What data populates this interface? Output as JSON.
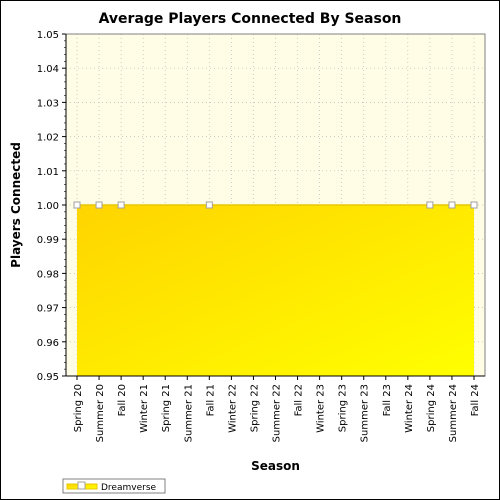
{
  "chart_data": {
    "type": "area",
    "title": "Average Players Connected By Season",
    "xlabel": "Season",
    "ylabel": "Players Connected",
    "ylim": [
      0.95,
      1.05
    ],
    "yticks": [
      "0.95",
      "0.96",
      "0.97",
      "0.98",
      "0.99",
      "1.00",
      "1.01",
      "1.02",
      "1.03",
      "1.04",
      "1.05"
    ],
    "categories": [
      "Spring 20",
      "Summer 20",
      "Fall 20",
      "Winter 21",
      "Spring 21",
      "Summer 21",
      "Fall 21",
      "Winter 22",
      "Spring 22",
      "Summer 22",
      "Fall 22",
      "Winter 23",
      "Spring 23",
      "Summer 23",
      "Fall 23",
      "Winter 24",
      "Spring 24",
      "Summer 24",
      "Fall 24"
    ],
    "series": [
      {
        "name": "Dreamverse",
        "values": [
          1,
          1,
          1,
          1,
          1,
          1,
          1,
          1,
          1,
          1,
          1,
          1,
          1,
          1,
          1,
          1,
          1,
          1,
          1
        ],
        "markers": [
          true,
          true,
          true,
          false,
          false,
          false,
          true,
          false,
          false,
          false,
          false,
          false,
          false,
          false,
          false,
          false,
          true,
          true,
          true
        ]
      }
    ],
    "grid": true,
    "legend_position": "bottom-left",
    "colors": {
      "plot_background": "#fffde6",
      "area_top": "#ffd400",
      "area_bottom": "#ffff00",
      "line": "#e8c800",
      "grid": "#b8b8b8"
    }
  }
}
